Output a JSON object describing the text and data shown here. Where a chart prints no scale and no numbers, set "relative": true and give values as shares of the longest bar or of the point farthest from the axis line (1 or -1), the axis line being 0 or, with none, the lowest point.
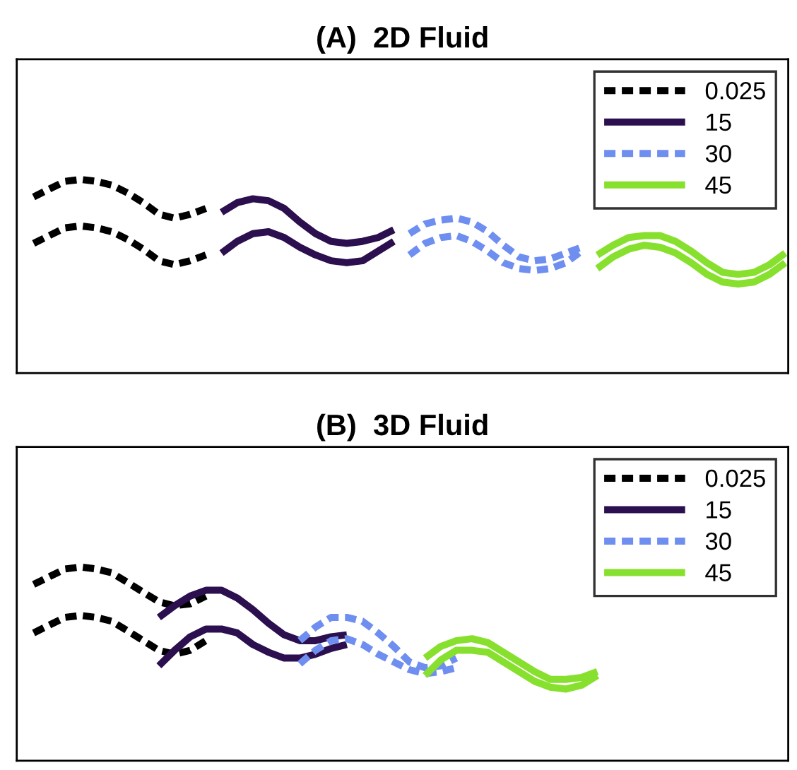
{
  "chart_data": [
    {
      "type": "line",
      "title": "(A)  2D Fluid",
      "relative": true,
      "legend": "top right",
      "grid": false,
      "marker": "none",
      "categories": [
        null,
        null,
        null,
        null,
        null,
        null,
        null,
        null,
        null,
        null,
        null,
        null,
        null,
        null,
        null,
        null,
        null,
        null,
        null,
        null,
        null,
        null,
        null,
        null,
        null,
        null,
        null,
        null,
        null,
        null,
        null,
        null,
        null,
        null,
        null,
        null,
        null,
        null,
        null,
        null,
        null,
        null,
        null,
        null,
        null,
        null,
        null,
        null,
        null
      ],
      "series": [
        {
          "name": "0.025",
          "color": "#000000",
          "line_style": "dashed",
          "values": [
            0.91,
            0.95,
            0.99,
            1.0,
            0.99,
            0.97,
            0.93,
            0.88,
            0.82,
            0.8,
            0.82,
            0.85,
            null,
            null,
            null,
            null,
            null,
            null,
            null,
            null,
            null,
            null,
            null,
            null,
            null,
            null,
            null,
            null,
            null,
            null,
            null,
            null,
            null,
            null,
            null,
            null,
            null,
            null,
            null,
            null,
            null,
            null,
            null,
            null,
            null,
            null,
            null,
            null,
            null
          ]
        },
        {
          "color": "#000000",
          "line_style": "dashed",
          "values": [
            0.67,
            0.71,
            0.75,
            0.76,
            0.75,
            0.73,
            0.69,
            0.64,
            0.58,
            0.56,
            0.58,
            0.61,
            null,
            null,
            null,
            null,
            null,
            null,
            null,
            null,
            null,
            null,
            null,
            null,
            null,
            null,
            null,
            null,
            null,
            null,
            null,
            null,
            null,
            null,
            null,
            null,
            null,
            null,
            null,
            null,
            null,
            null,
            null,
            null,
            null,
            null,
            null,
            null,
            null
          ]
        },
        {
          "name": "15",
          "color": "#2b0f4e",
          "line_style": "solid",
          "values": [
            null,
            null,
            null,
            null,
            null,
            null,
            null,
            null,
            null,
            null,
            null,
            null,
            0.83,
            0.88,
            0.9,
            0.89,
            0.85,
            0.78,
            0.72,
            0.68,
            0.67,
            0.68,
            0.7,
            0.74,
            null,
            null,
            null,
            null,
            null,
            null,
            null,
            null,
            null,
            null,
            null,
            null,
            null,
            null,
            null,
            null,
            null,
            null,
            null,
            null,
            null,
            null,
            null,
            null,
            null
          ]
        },
        {
          "color": "#2b0f4e",
          "line_style": "solid",
          "values": [
            null,
            null,
            null,
            null,
            null,
            null,
            null,
            null,
            null,
            null,
            null,
            null,
            0.62,
            0.68,
            0.72,
            0.73,
            0.7,
            0.65,
            0.61,
            0.58,
            0.57,
            0.58,
            0.63,
            0.68,
            null,
            null,
            null,
            null,
            null,
            null,
            null,
            null,
            null,
            null,
            null,
            null,
            null,
            null,
            null,
            null,
            null,
            null,
            null,
            null,
            null,
            null,
            null,
            null,
            null
          ]
        },
        {
          "name": "30",
          "color": "#6f8ff0",
          "line_style": "dashed",
          "values": [
            null,
            null,
            null,
            null,
            null,
            null,
            null,
            null,
            null,
            null,
            null,
            null,
            null,
            null,
            null,
            null,
            null,
            null,
            null,
            null,
            null,
            null,
            null,
            null,
            0.72,
            0.77,
            0.79,
            0.8,
            0.78,
            0.73,
            0.66,
            0.6,
            0.58,
            0.59,
            0.62,
            0.65,
            null,
            null,
            null,
            null,
            null,
            null,
            null,
            null,
            null,
            null,
            null,
            null,
            null
          ]
        },
        {
          "color": "#6f8ff0",
          "line_style": "dashed",
          "values": [
            null,
            null,
            null,
            null,
            null,
            null,
            null,
            null,
            null,
            null,
            null,
            null,
            null,
            null,
            null,
            null,
            null,
            null,
            null,
            null,
            null,
            null,
            null,
            null,
            0.61,
            0.67,
            0.7,
            0.71,
            0.68,
            0.63,
            0.57,
            0.54,
            0.53,
            0.54,
            0.57,
            0.63,
            null,
            null,
            null,
            null,
            null,
            null,
            null,
            null,
            null,
            null,
            null,
            null,
            null
          ]
        },
        {
          "name": "45",
          "color": "#88e02e",
          "line_style": "solid",
          "values": [
            null,
            null,
            null,
            null,
            null,
            null,
            null,
            null,
            null,
            null,
            null,
            null,
            null,
            null,
            null,
            null,
            null,
            null,
            null,
            null,
            null,
            null,
            null,
            null,
            null,
            null,
            null,
            null,
            null,
            null,
            null,
            null,
            null,
            null,
            null,
            null,
            0.61,
            0.66,
            0.7,
            0.71,
            0.71,
            0.68,
            0.63,
            0.57,
            0.52,
            0.51,
            0.52,
            0.56,
            0.62
          ]
        },
        {
          "color": "#88e02e",
          "line_style": "solid",
          "values": [
            null,
            null,
            null,
            null,
            null,
            null,
            null,
            null,
            null,
            null,
            null,
            null,
            null,
            null,
            null,
            null,
            null,
            null,
            null,
            null,
            null,
            null,
            null,
            null,
            null,
            null,
            null,
            null,
            null,
            null,
            null,
            null,
            null,
            null,
            null,
            null,
            0.54,
            0.6,
            0.64,
            0.66,
            0.65,
            0.62,
            0.57,
            0.51,
            0.47,
            0.46,
            0.47,
            0.51,
            0.57
          ]
        }
      ]
    },
    {
      "type": "line",
      "title": "(B)  3D Fluid",
      "relative": true,
      "legend": "top right",
      "grid": false,
      "marker": "none",
      "categories": [
        null,
        null,
        null,
        null,
        null,
        null,
        null,
        null,
        null,
        null,
        null,
        null,
        null,
        null,
        null,
        null,
        null,
        null,
        null,
        null,
        null,
        null,
        null,
        null,
        null,
        null,
        null,
        null,
        null,
        null,
        null,
        null,
        null,
        null,
        null,
        null,
        null,
        null,
        null,
        null,
        null,
        null,
        null,
        null,
        null,
        null,
        null,
        null,
        null
      ],
      "series": [
        {
          "name": "0.025",
          "color": "#000000",
          "line_style": "dashed",
          "values": [
            0.91,
            0.95,
            0.99,
            1.0,
            0.99,
            0.97,
            0.92,
            0.87,
            0.82,
            0.8,
            0.81,
            0.85,
            null,
            null,
            null,
            null,
            null,
            null,
            null,
            null,
            null,
            null,
            null,
            null,
            null,
            null,
            null,
            null,
            null,
            null,
            null,
            null,
            null,
            null,
            null,
            null,
            null,
            null,
            null,
            null,
            null,
            null,
            null,
            null,
            null,
            null,
            null,
            null,
            null
          ]
        },
        {
          "color": "#000000",
          "line_style": "dashed",
          "values": [
            0.66,
            0.7,
            0.74,
            0.75,
            0.74,
            0.72,
            0.67,
            0.62,
            0.57,
            0.55,
            0.57,
            0.62,
            null,
            null,
            null,
            null,
            null,
            null,
            null,
            null,
            null,
            null,
            null,
            null,
            null,
            null,
            null,
            null,
            null,
            null,
            null,
            null,
            null,
            null,
            null,
            null,
            null,
            null,
            null,
            null,
            null,
            null,
            null,
            null,
            null,
            null,
            null,
            null,
            null
          ]
        },
        {
          "name": "15",
          "color": "#2b0f4e",
          "line_style": "solid",
          "values": [
            null,
            null,
            null,
            null,
            null,
            null,
            null,
            null,
            0.74,
            0.8,
            0.85,
            0.88,
            0.88,
            0.84,
            0.78,
            0.71,
            0.65,
            0.62,
            0.62,
            0.64,
            0.65,
            null,
            null,
            null,
            null,
            null,
            null,
            null,
            null,
            null,
            null,
            null,
            null,
            null,
            null,
            null,
            null,
            null,
            null,
            null,
            null,
            null,
            null,
            null,
            null,
            null,
            null,
            null,
            null
          ]
        },
        {
          "color": "#2b0f4e",
          "line_style": "solid",
          "values": [
            null,
            null,
            null,
            null,
            null,
            null,
            null,
            null,
            0.49,
            0.57,
            0.64,
            0.68,
            0.68,
            0.66,
            0.6,
            0.56,
            0.53,
            0.53,
            0.55,
            0.58,
            0.6,
            null,
            null,
            null,
            null,
            null,
            null,
            null,
            null,
            null,
            null,
            null,
            null,
            null,
            null,
            null,
            null,
            null,
            null,
            null,
            null,
            null,
            null,
            null,
            null,
            null,
            null,
            null,
            null
          ]
        },
        {
          "name": "30",
          "color": "#6f8ff0",
          "line_style": "dashed",
          "values": [
            null,
            null,
            null,
            null,
            null,
            null,
            null,
            null,
            null,
            null,
            null,
            null,
            null,
            null,
            null,
            null,
            null,
            0.62,
            0.69,
            0.74,
            0.74,
            0.72,
            0.66,
            0.59,
            0.51,
            0.48,
            0.49,
            0.53,
            null,
            null,
            null,
            null,
            null,
            null,
            null,
            null,
            null,
            null,
            null,
            null,
            null,
            null,
            null,
            null,
            null,
            null,
            null,
            null,
            null
          ]
        },
        {
          "color": "#6f8ff0",
          "line_style": "dashed",
          "values": [
            null,
            null,
            null,
            null,
            null,
            null,
            null,
            null,
            null,
            null,
            null,
            null,
            null,
            null,
            null,
            null,
            null,
            0.5,
            0.57,
            0.62,
            0.63,
            0.6,
            0.55,
            0.51,
            0.47,
            0.45,
            0.46,
            0.48,
            null,
            null,
            null,
            null,
            null,
            null,
            null,
            null,
            null,
            null,
            null,
            null,
            null,
            null,
            null,
            null,
            null,
            null,
            null,
            null,
            null
          ]
        },
        {
          "name": "45",
          "color": "#88e02e",
          "line_style": "solid",
          "values": [
            null,
            null,
            null,
            null,
            null,
            null,
            null,
            null,
            null,
            null,
            null,
            null,
            null,
            null,
            null,
            null,
            null,
            null,
            null,
            null,
            null,
            null,
            null,
            null,
            null,
            0.53,
            0.59,
            0.62,
            0.63,
            0.61,
            0.56,
            0.51,
            0.46,
            0.42,
            0.42,
            0.43,
            0.46,
            null,
            null,
            null,
            null,
            null,
            null,
            null,
            null,
            null,
            null,
            null,
            null
          ]
        },
        {
          "color": "#88e02e",
          "line_style": "solid",
          "values": [
            null,
            null,
            null,
            null,
            null,
            null,
            null,
            null,
            null,
            null,
            null,
            null,
            null,
            null,
            null,
            null,
            null,
            null,
            null,
            null,
            null,
            null,
            null,
            null,
            null,
            0.44,
            0.52,
            0.57,
            0.57,
            0.56,
            0.51,
            0.46,
            0.41,
            0.38,
            0.37,
            0.39,
            0.44,
            null,
            null,
            null,
            null,
            null,
            null,
            null,
            null,
            null,
            null,
            null,
            null
          ]
        }
      ]
    }
  ]
}
